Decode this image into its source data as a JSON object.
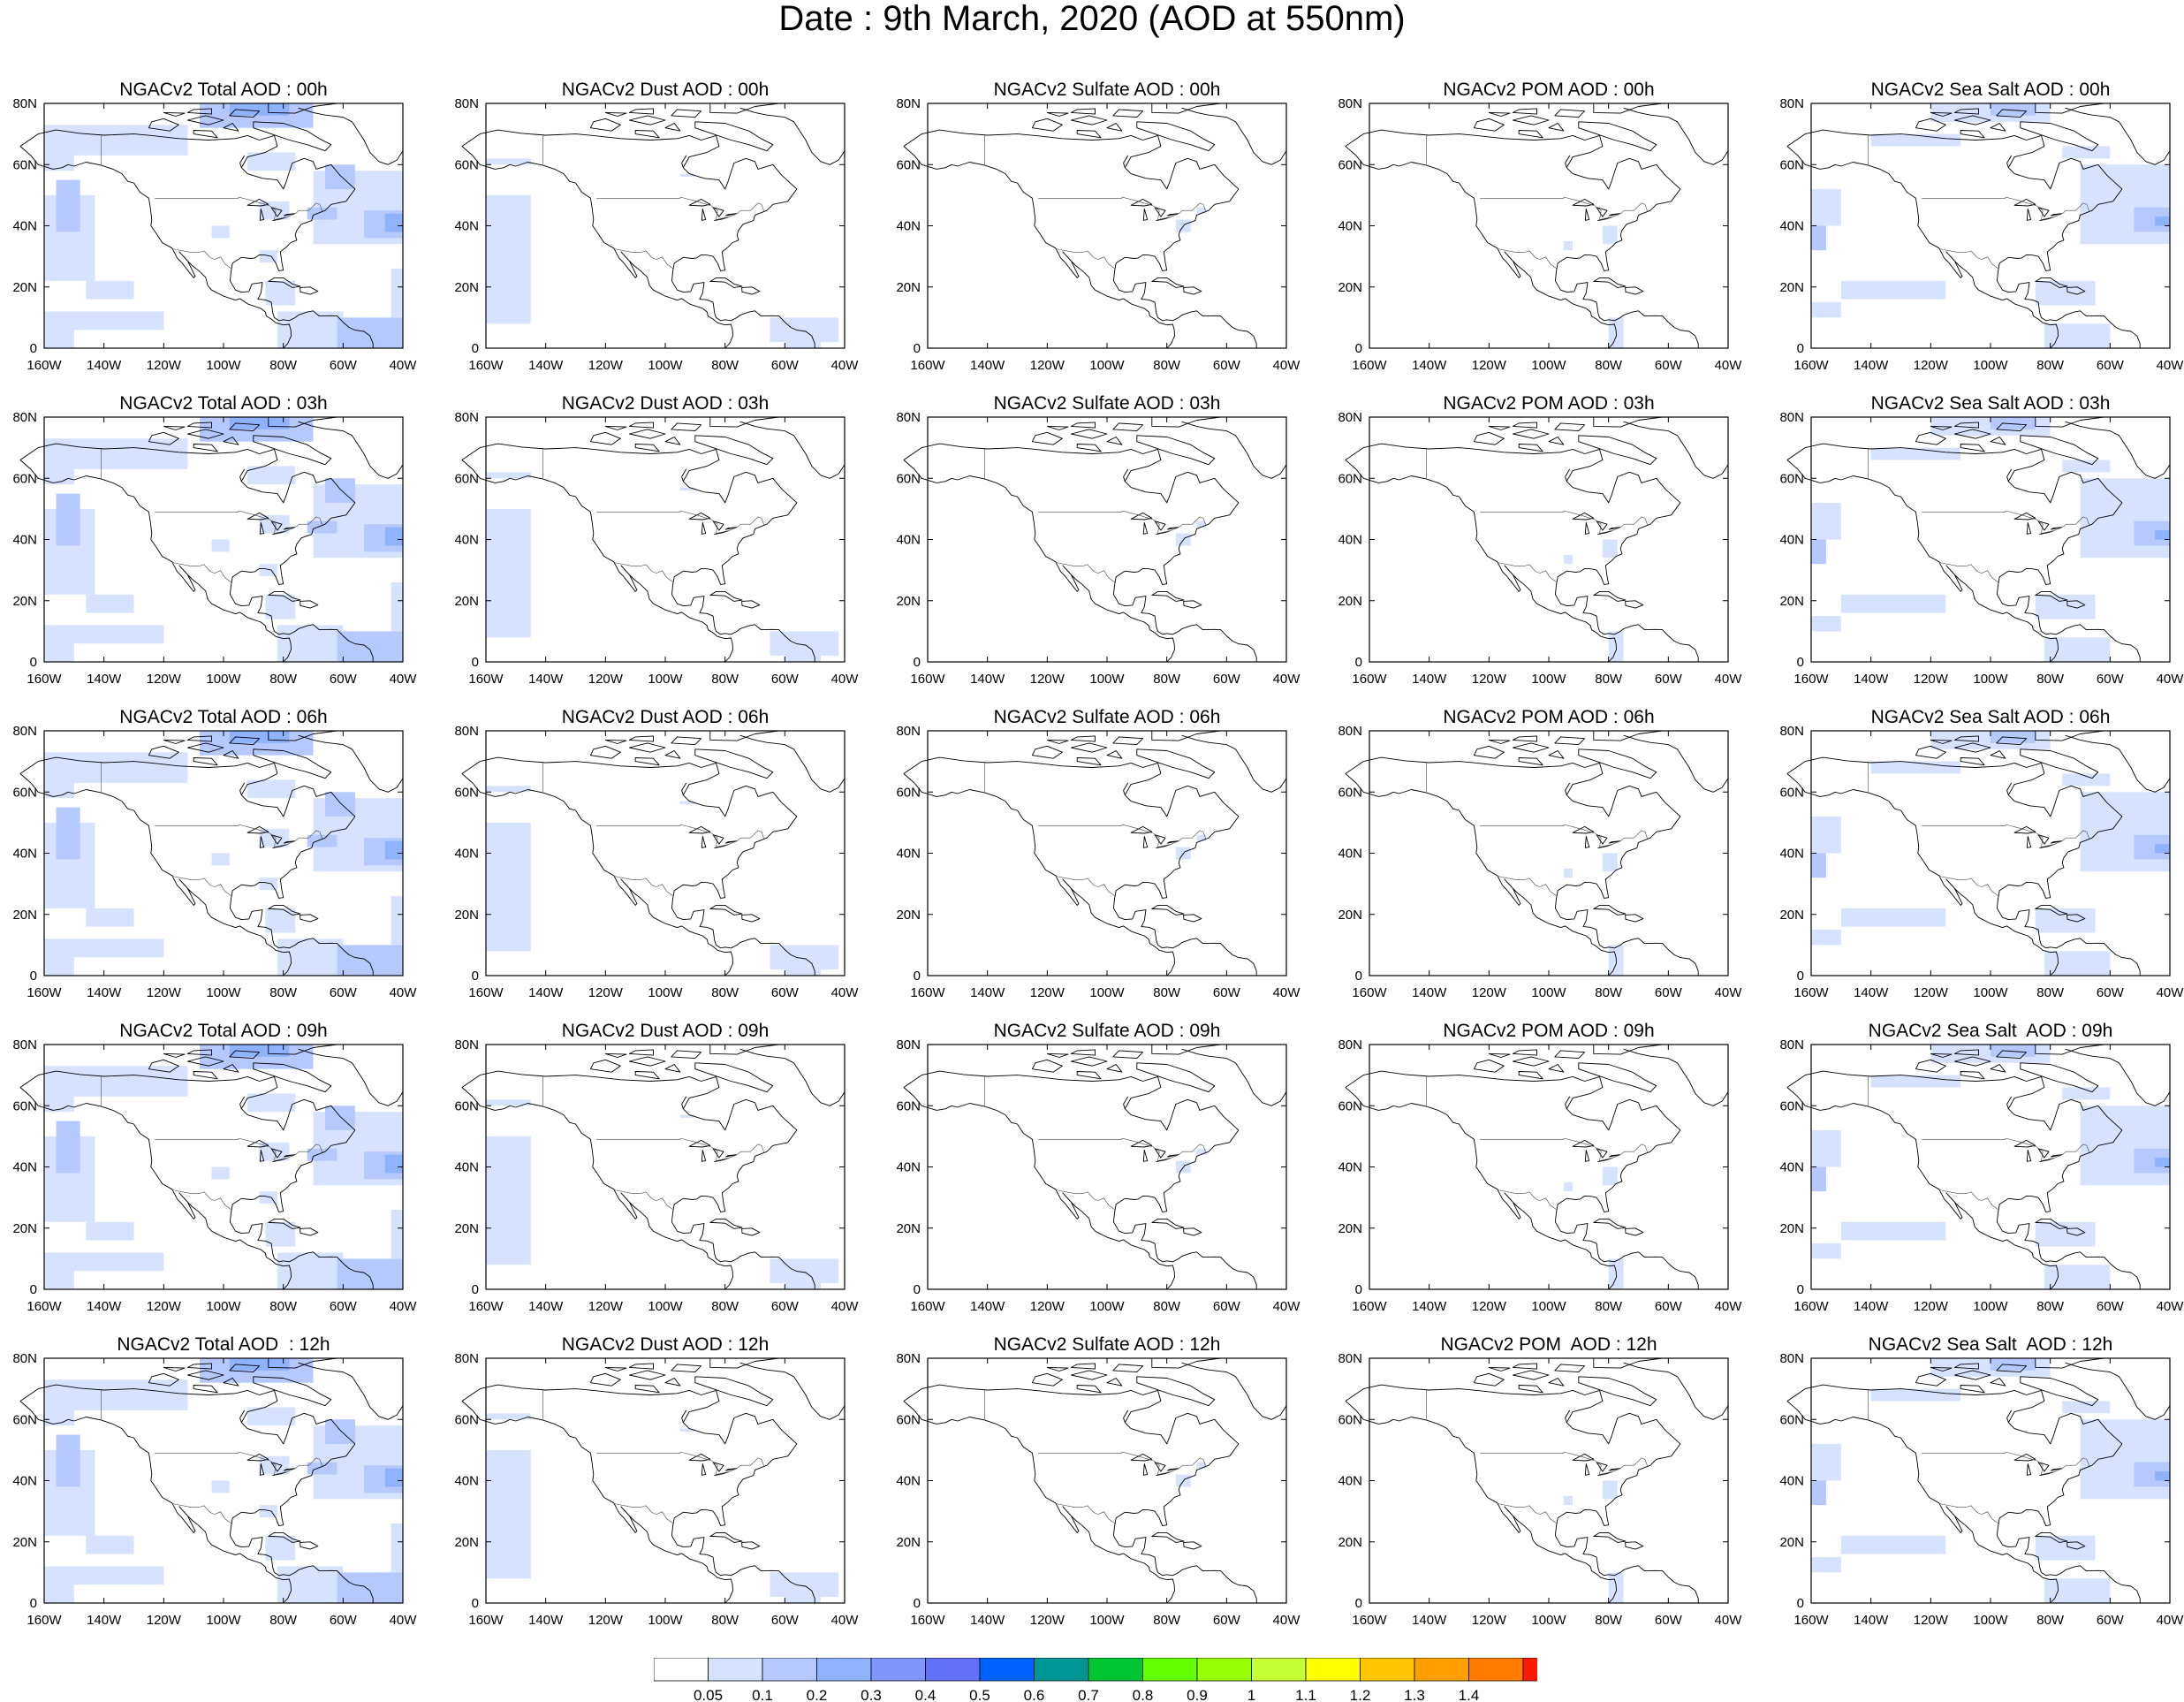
{
  "figure": {
    "title": "Date : 9th March, 2020 (AOD at 550nm)"
  },
  "axes": {
    "lat_labels": [
      "80N",
      "60N",
      "40N",
      "20N",
      "0"
    ],
    "lon_labels": [
      "160W",
      "140W",
      "120W",
      "100W",
      "80W",
      "60W",
      "40W"
    ]
  },
  "panels": [
    [
      {
        "title": "NGACv2 Total AOD : 00h",
        "species": "total",
        "hour": 0
      },
      {
        "title": "NGACv2 Dust AOD : 00h",
        "species": "dust",
        "hour": 0
      },
      {
        "title": "NGACv2 Sulfate AOD : 00h",
        "species": "sulfate",
        "hour": 0
      },
      {
        "title": "NGACv2 POM AOD : 00h",
        "species": "pom",
        "hour": 0
      },
      {
        "title": "NGACv2 Sea Salt AOD : 00h",
        "species": "seasalt",
        "hour": 0
      }
    ],
    [
      {
        "title": "NGACv2 Total AOD : 03h",
        "species": "total",
        "hour": 3
      },
      {
        "title": "NGACv2 Dust AOD : 03h",
        "species": "dust",
        "hour": 3
      },
      {
        "title": "NGACv2 Sulfate AOD : 03h",
        "species": "sulfate",
        "hour": 3
      },
      {
        "title": "NGACv2 POM AOD : 03h",
        "species": "pom",
        "hour": 3
      },
      {
        "title": "NGACv2 Sea Salt AOD : 03h",
        "species": "seasalt",
        "hour": 3
      }
    ],
    [
      {
        "title": "NGACv2 Total AOD : 06h",
        "species": "total",
        "hour": 6
      },
      {
        "title": "NGACv2 Dust AOD : 06h",
        "species": "dust",
        "hour": 6
      },
      {
        "title": "NGACv2 Sulfate AOD : 06h",
        "species": "sulfate",
        "hour": 6
      },
      {
        "title": "NGACv2 POM AOD : 06h",
        "species": "pom",
        "hour": 6
      },
      {
        "title": "NGACv2 Sea Salt AOD : 06h",
        "species": "seasalt",
        "hour": 6
      }
    ],
    [
      {
        "title": "NGACv2 Total AOD : 09h",
        "species": "total",
        "hour": 9
      },
      {
        "title": "NGACv2 Dust AOD : 09h",
        "species": "dust",
        "hour": 9
      },
      {
        "title": "NGACv2 Sulfate AOD : 09h",
        "species": "sulfate",
        "hour": 9
      },
      {
        "title": "NGACv2 POM AOD : 09h",
        "species": "pom",
        "hour": 9
      },
      {
        "title": "NGACv2 Sea Salt  AOD : 09h",
        "species": "seasalt",
        "hour": 9
      }
    ],
    [
      {
        "title": "NGACv2 Total AOD  : 12h",
        "species": "total",
        "hour": 12
      },
      {
        "title": "NGACv2 Dust AOD : 12h",
        "species": "dust",
        "hour": 12
      },
      {
        "title": "NGACv2 Sulfate AOD : 12h",
        "species": "sulfate",
        "hour": 12
      },
      {
        "title": "NGACv2 POM  AOD : 12h",
        "species": "pom",
        "hour": 12
      },
      {
        "title": "NGACv2 Sea Salt  AOD : 12h",
        "species": "seasalt",
        "hour": 12
      }
    ]
  ],
  "colorbar": {
    "labels": [
      "0.05",
      "0.1",
      "0.2",
      "0.3",
      "0.4",
      "0.5",
      "0.6",
      "0.7",
      "0.8",
      "0.9",
      "1",
      "1.1",
      "1.2",
      "1.3",
      "1.4"
    ],
    "colors": [
      "#ffffff",
      "#d6e2ff",
      "#b5c9ff",
      "#8fb2ff",
      "#7f96ff",
      "#6370f8",
      "#0063ff",
      "#009696",
      "#00c633",
      "#63ff00",
      "#96ff00",
      "#c6ff33",
      "#ffff00",
      "#ffc600",
      "#ffa000",
      "#ff7c00",
      "#ff1900"
    ]
  }
}
